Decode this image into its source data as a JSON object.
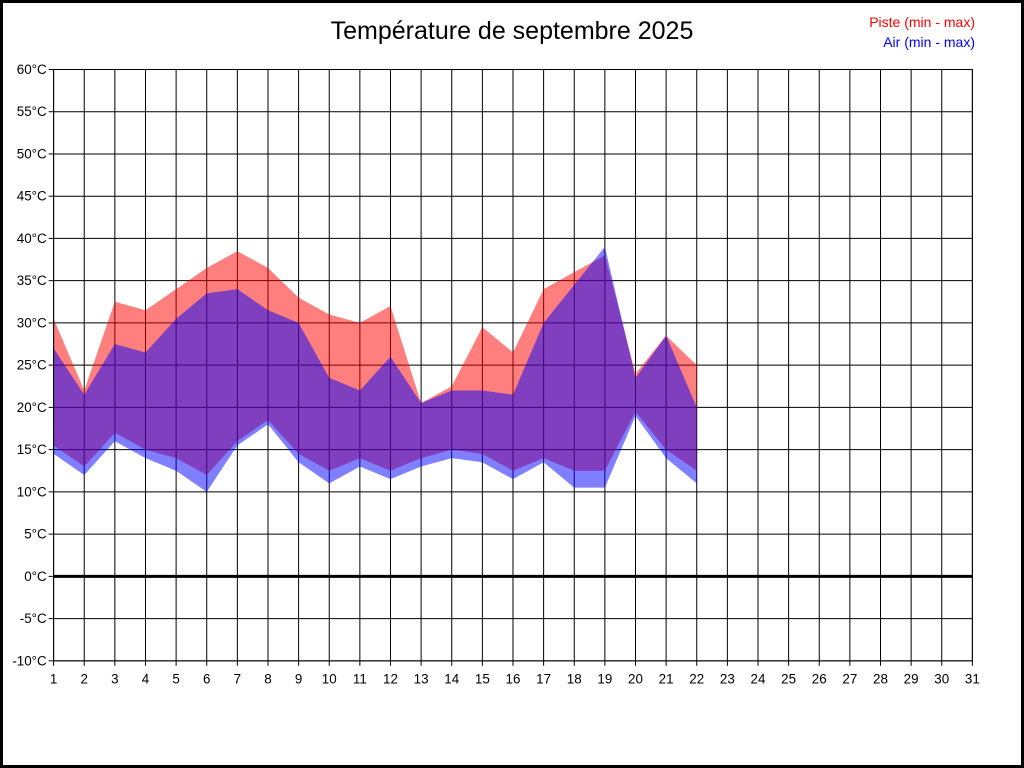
{
  "title": "Température de septembre 2025",
  "legend": {
    "items": [
      {
        "label": "Piste (min - max)",
        "color": "#ff0000"
      },
      {
        "label": "Air (min - max)",
        "color": "#0000ff"
      }
    ]
  },
  "chart_data": {
    "type": "area",
    "title": "Température de septembre 2025",
    "subtitle": "",
    "legend_position": "top-right",
    "grid": true,
    "zero_line_value": 0,
    "x_axis": {
      "label": "",
      "min": 1,
      "max": 31,
      "tick_step": 1,
      "tick_labels": [
        "1",
        "2",
        "3",
        "4",
        "5",
        "6",
        "7",
        "8",
        "9",
        "10",
        "11",
        "12",
        "13",
        "14",
        "15",
        "16",
        "17",
        "18",
        "19",
        "20",
        "21",
        "22",
        "23",
        "24",
        "25",
        "26",
        "27",
        "28",
        "29",
        "30",
        "31"
      ]
    },
    "y_axis": {
      "label": "",
      "min": -10,
      "max": 60,
      "tick_step": 5,
      "unit": "°C",
      "tick_labels": [
        "60°C",
        "55°C",
        "50°C",
        "45°C",
        "40°C",
        "35°C",
        "30°C",
        "25°C",
        "20°C",
        "15°C",
        "10°C",
        "5°C",
        "0°C",
        "-5°C",
        "-10°C"
      ]
    },
    "days": [
      1,
      2,
      3,
      4,
      5,
      6,
      7,
      8,
      9,
      10,
      11,
      12,
      13,
      14,
      15,
      16,
      17,
      18,
      19,
      20,
      21,
      22
    ],
    "series": [
      {
        "id": "piste",
        "name": "Piste (min - max)",
        "color": "#ff0000",
        "fill": "rgba(255,0,0,0.5)",
        "min": [
          15.5,
          13,
          17,
          15,
          14,
          12,
          16,
          18.5,
          14.5,
          12.5,
          14,
          12.5,
          14,
          15,
          14.5,
          12.5,
          14,
          12.5,
          12.5,
          19.5,
          15,
          12.5
        ],
        "max": [
          30.5,
          22,
          32.5,
          31.5,
          34,
          36.5,
          38.5,
          36.5,
          33,
          31,
          30,
          32,
          20.5,
          22.5,
          29.5,
          26.5,
          34,
          36,
          38,
          24,
          28.5,
          25
        ]
      },
      {
        "id": "air",
        "name": "Air (min - max)",
        "color": "#0000ff",
        "fill": "rgba(0,0,255,0.5)",
        "min": [
          14.5,
          12,
          16,
          14,
          12.5,
          10,
          15.5,
          18,
          13.5,
          11,
          13,
          11.5,
          13,
          14,
          13.5,
          11.5,
          13.5,
          10.5,
          10.5,
          19,
          14,
          11
        ],
        "max": [
          27,
          21.5,
          27.5,
          26.5,
          30.5,
          33.5,
          34,
          31.5,
          30,
          23.5,
          22,
          26,
          20.5,
          22,
          22,
          21.5,
          30,
          34.5,
          39,
          23.5,
          28.5,
          20
        ]
      }
    ]
  }
}
